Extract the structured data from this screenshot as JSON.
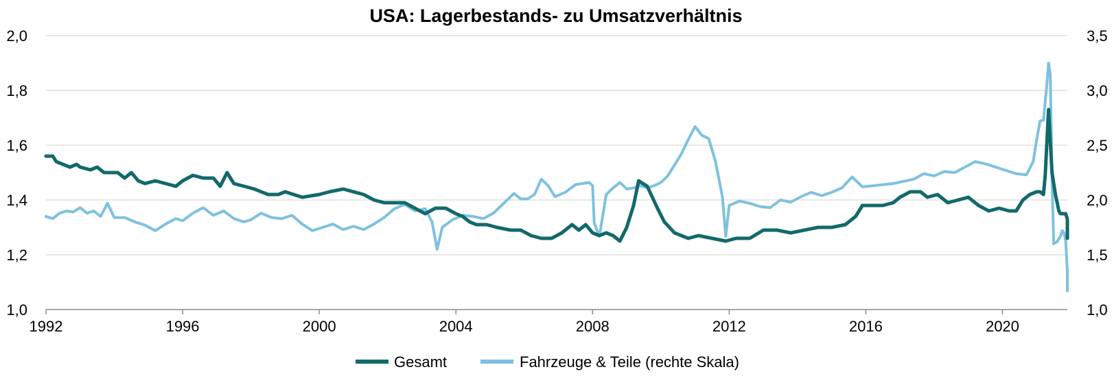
{
  "chart_data": {
    "type": "line",
    "title": "USA: Lagerbestands- zu Umsatzverhältnis",
    "xlabel": "",
    "ylabel": "",
    "xlim": [
      1992,
      2021.9
    ],
    "x_ticks": [
      1992,
      1996,
      2000,
      2004,
      2008,
      2012,
      2016,
      2020
    ],
    "y_left": {
      "lim": [
        1.0,
        2.0
      ],
      "ticks": [
        "1,0",
        "1,2",
        "1,4",
        "1,6",
        "1,8",
        "2,0"
      ],
      "tick_values": [
        1.0,
        1.2,
        1.4,
        1.6,
        1.8,
        2.0
      ]
    },
    "y_right": {
      "lim": [
        1.0,
        3.5
      ],
      "ticks": [
        "1,0",
        "1,5",
        "2,0",
        "2,5",
        "3,0",
        "3,5"
      ],
      "tick_values": [
        1.0,
        1.5,
        2.0,
        2.5,
        3.0,
        3.5
      ]
    },
    "grid": "horizontal",
    "legend_position": "bottom-center",
    "series": [
      {
        "name": "Gesamt",
        "axis": "left",
        "color": "#12696b",
        "points": [
          [
            1992.0,
            1.56
          ],
          [
            1992.2,
            1.56
          ],
          [
            1992.3,
            1.54
          ],
          [
            1992.5,
            1.53
          ],
          [
            1992.7,
            1.52
          ],
          [
            1992.9,
            1.53
          ],
          [
            1993.0,
            1.52
          ],
          [
            1993.3,
            1.51
          ],
          [
            1993.5,
            1.52
          ],
          [
            1993.7,
            1.5
          ],
          [
            1993.9,
            1.5
          ],
          [
            1994.1,
            1.5
          ],
          [
            1994.3,
            1.48
          ],
          [
            1994.5,
            1.5
          ],
          [
            1994.7,
            1.47
          ],
          [
            1994.9,
            1.46
          ],
          [
            1995.2,
            1.47
          ],
          [
            1995.5,
            1.46
          ],
          [
            1995.8,
            1.45
          ],
          [
            1996.0,
            1.47
          ],
          [
            1996.3,
            1.49
          ],
          [
            1996.6,
            1.48
          ],
          [
            1996.9,
            1.48
          ],
          [
            1997.1,
            1.45
          ],
          [
            1997.3,
            1.5
          ],
          [
            1997.5,
            1.46
          ],
          [
            1997.8,
            1.45
          ],
          [
            1998.1,
            1.44
          ],
          [
            1998.5,
            1.42
          ],
          [
            1998.8,
            1.42
          ],
          [
            1999.0,
            1.43
          ],
          [
            1999.5,
            1.41
          ],
          [
            2000.0,
            1.42
          ],
          [
            2000.3,
            1.43
          ],
          [
            2000.7,
            1.44
          ],
          [
            2001.0,
            1.43
          ],
          [
            2001.3,
            1.42
          ],
          [
            2001.6,
            1.4
          ],
          [
            2001.9,
            1.39
          ],
          [
            2002.2,
            1.39
          ],
          [
            2002.5,
            1.39
          ],
          [
            2002.8,
            1.37
          ],
          [
            2003.1,
            1.35
          ],
          [
            2003.4,
            1.37
          ],
          [
            2003.7,
            1.37
          ],
          [
            2004.0,
            1.35
          ],
          [
            2004.2,
            1.34
          ],
          [
            2004.4,
            1.32
          ],
          [
            2004.6,
            1.31
          ],
          [
            2004.9,
            1.31
          ],
          [
            2005.2,
            1.3
          ],
          [
            2005.6,
            1.29
          ],
          [
            2005.9,
            1.29
          ],
          [
            2006.2,
            1.27
          ],
          [
            2006.5,
            1.26
          ],
          [
            2006.8,
            1.26
          ],
          [
            2007.1,
            1.28
          ],
          [
            2007.4,
            1.31
          ],
          [
            2007.6,
            1.29
          ],
          [
            2007.8,
            1.31
          ],
          [
            2008.0,
            1.28
          ],
          [
            2008.2,
            1.27
          ],
          [
            2008.4,
            1.28
          ],
          [
            2008.6,
            1.27
          ],
          [
            2008.8,
            1.25
          ],
          [
            2009.0,
            1.3
          ],
          [
            2009.2,
            1.38
          ],
          [
            2009.35,
            1.47
          ],
          [
            2009.6,
            1.45
          ],
          [
            2009.9,
            1.37
          ],
          [
            2010.1,
            1.32
          ],
          [
            2010.4,
            1.28
          ],
          [
            2010.8,
            1.26
          ],
          [
            2011.1,
            1.27
          ],
          [
            2011.5,
            1.26
          ],
          [
            2011.9,
            1.25
          ],
          [
            2012.2,
            1.26
          ],
          [
            2012.6,
            1.26
          ],
          [
            2013.0,
            1.29
          ],
          [
            2013.4,
            1.29
          ],
          [
            2013.8,
            1.28
          ],
          [
            2014.2,
            1.29
          ],
          [
            2014.6,
            1.3
          ],
          [
            2015.0,
            1.3
          ],
          [
            2015.4,
            1.31
          ],
          [
            2015.7,
            1.34
          ],
          [
            2015.9,
            1.38
          ],
          [
            2016.2,
            1.38
          ],
          [
            2016.5,
            1.38
          ],
          [
            2016.8,
            1.39
          ],
          [
            2017.0,
            1.41
          ],
          [
            2017.3,
            1.43
          ],
          [
            2017.6,
            1.43
          ],
          [
            2017.8,
            1.41
          ],
          [
            2018.1,
            1.42
          ],
          [
            2018.4,
            1.39
          ],
          [
            2018.7,
            1.4
          ],
          [
            2019.0,
            1.41
          ],
          [
            2019.3,
            1.38
          ],
          [
            2019.6,
            1.36
          ],
          [
            2019.9,
            1.37
          ],
          [
            2020.2,
            1.36
          ],
          [
            2020.4,
            1.36
          ],
          [
            2020.6,
            1.4
          ],
          [
            2020.8,
            1.42
          ],
          [
            2021.0,
            1.43
          ],
          [
            2021.1,
            1.43
          ],
          [
            2021.2,
            1.42
          ],
          [
            2021.25,
            1.49
          ],
          [
            2021.35,
            1.73
          ],
          [
            2021.45,
            1.5
          ],
          [
            2021.55,
            1.42
          ],
          [
            2021.65,
            1.36
          ],
          [
            2021.7,
            1.35
          ],
          [
            2021.8,
            1.35
          ],
          [
            2021.85,
            1.35
          ],
          [
            2021.9,
            1.33
          ],
          [
            2021.9,
            1.26
          ]
        ]
      },
      {
        "name": "Fahrzeuge & Teile (rechte Skala)",
        "axis": "right",
        "color": "#7ec1df",
        "points": [
          [
            1992.0,
            1.85
          ],
          [
            1992.2,
            1.83
          ],
          [
            1992.4,
            1.88
          ],
          [
            1992.6,
            1.9
          ],
          [
            1992.8,
            1.89
          ],
          [
            1993.0,
            1.93
          ],
          [
            1993.2,
            1.88
          ],
          [
            1993.4,
            1.9
          ],
          [
            1993.6,
            1.85
          ],
          [
            1993.8,
            1.97
          ],
          [
            1994.0,
            1.84
          ],
          [
            1994.3,
            1.84
          ],
          [
            1994.6,
            1.8
          ],
          [
            1994.9,
            1.77
          ],
          [
            1995.2,
            1.72
          ],
          [
            1995.5,
            1.78
          ],
          [
            1995.8,
            1.83
          ],
          [
            1996.0,
            1.81
          ],
          [
            1996.3,
            1.88
          ],
          [
            1996.6,
            1.93
          ],
          [
            1996.9,
            1.86
          ],
          [
            1997.2,
            1.9
          ],
          [
            1997.5,
            1.83
          ],
          [
            1997.8,
            1.8
          ],
          [
            1998.0,
            1.82
          ],
          [
            1998.3,
            1.88
          ],
          [
            1998.6,
            1.84
          ],
          [
            1998.9,
            1.83
          ],
          [
            1999.2,
            1.86
          ],
          [
            1999.5,
            1.78
          ],
          [
            1999.8,
            1.72
          ],
          [
            2000.1,
            1.75
          ],
          [
            2000.4,
            1.78
          ],
          [
            2000.7,
            1.73
          ],
          [
            2001.0,
            1.76
          ],
          [
            2001.3,
            1.73
          ],
          [
            2001.6,
            1.78
          ],
          [
            2001.9,
            1.84
          ],
          [
            2002.2,
            1.92
          ],
          [
            2002.5,
            1.96
          ],
          [
            2002.8,
            1.9
          ],
          [
            2003.1,
            1.92
          ],
          [
            2003.3,
            1.8
          ],
          [
            2003.45,
            1.55
          ],
          [
            2003.6,
            1.75
          ],
          [
            2003.9,
            1.82
          ],
          [
            2004.2,
            1.86
          ],
          [
            2004.5,
            1.85
          ],
          [
            2004.8,
            1.83
          ],
          [
            2005.1,
            1.88
          ],
          [
            2005.4,
            1.97
          ],
          [
            2005.7,
            2.06
          ],
          [
            2005.9,
            2.01
          ],
          [
            2006.1,
            2.01
          ],
          [
            2006.3,
            2.05
          ],
          [
            2006.5,
            2.19
          ],
          [
            2006.7,
            2.13
          ],
          [
            2006.9,
            2.03
          ],
          [
            2007.2,
            2.07
          ],
          [
            2007.5,
            2.14
          ],
          [
            2007.7,
            2.15
          ],
          [
            2007.9,
            2.16
          ],
          [
            2008.0,
            2.13
          ],
          [
            2008.05,
            1.79
          ],
          [
            2008.2,
            1.67
          ],
          [
            2008.4,
            2.05
          ],
          [
            2008.6,
            2.11
          ],
          [
            2008.8,
            2.16
          ],
          [
            2009.0,
            2.1
          ],
          [
            2009.2,
            2.11
          ],
          [
            2009.4,
            2.13
          ],
          [
            2009.6,
            2.11
          ],
          [
            2009.8,
            2.13
          ],
          [
            2010.0,
            2.16
          ],
          [
            2010.2,
            2.22
          ],
          [
            2010.4,
            2.32
          ],
          [
            2010.6,
            2.42
          ],
          [
            2010.8,
            2.55
          ],
          [
            2011.0,
            2.67
          ],
          [
            2011.2,
            2.59
          ],
          [
            2011.4,
            2.56
          ],
          [
            2011.6,
            2.35
          ],
          [
            2011.8,
            2.03
          ],
          [
            2011.9,
            1.67
          ],
          [
            2012.0,
            1.95
          ],
          [
            2012.3,
            1.99
          ],
          [
            2012.6,
            1.97
          ],
          [
            2012.9,
            1.94
          ],
          [
            2013.2,
            1.93
          ],
          [
            2013.5,
            2.0
          ],
          [
            2013.8,
            1.98
          ],
          [
            2014.1,
            2.03
          ],
          [
            2014.4,
            2.07
          ],
          [
            2014.7,
            2.04
          ],
          [
            2015.0,
            2.07
          ],
          [
            2015.3,
            2.11
          ],
          [
            2015.6,
            2.21
          ],
          [
            2015.9,
            2.12
          ],
          [
            2016.2,
            2.13
          ],
          [
            2016.5,
            2.14
          ],
          [
            2016.8,
            2.15
          ],
          [
            2017.1,
            2.17
          ],
          [
            2017.4,
            2.19
          ],
          [
            2017.7,
            2.24
          ],
          [
            2018.0,
            2.22
          ],
          [
            2018.3,
            2.26
          ],
          [
            2018.6,
            2.25
          ],
          [
            2018.9,
            2.3
          ],
          [
            2019.2,
            2.35
          ],
          [
            2019.5,
            2.33
          ],
          [
            2019.8,
            2.3
          ],
          [
            2020.1,
            2.27
          ],
          [
            2020.4,
            2.24
          ],
          [
            2020.7,
            2.23
          ],
          [
            2020.9,
            2.35
          ],
          [
            2021.0,
            2.55
          ],
          [
            2021.1,
            2.72
          ],
          [
            2021.2,
            2.73
          ],
          [
            2021.3,
            3.05
          ],
          [
            2021.35,
            3.25
          ],
          [
            2021.4,
            3.15
          ],
          [
            2021.45,
            2.2
          ],
          [
            2021.5,
            1.6
          ],
          [
            2021.6,
            1.62
          ],
          [
            2021.7,
            1.67
          ],
          [
            2021.75,
            1.72
          ],
          [
            2021.8,
            1.7
          ],
          [
            2021.85,
            1.63
          ],
          [
            2021.9,
            1.35
          ],
          [
            2021.9,
            1.17
          ]
        ]
      }
    ]
  }
}
